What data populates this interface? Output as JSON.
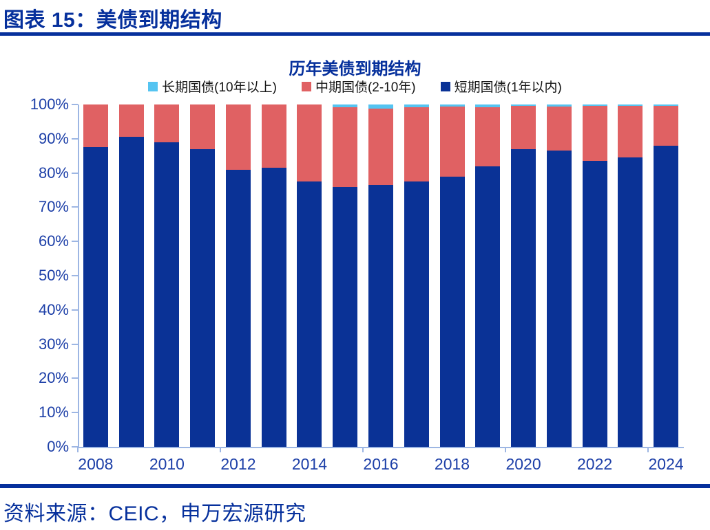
{
  "header": {
    "title": "图表 15：美债到期结构"
  },
  "footer": {
    "source": "资料来源：CEIC，申万宏源研究"
  },
  "colors": {
    "navy_text": "#06309c",
    "axis_label_blue": "#1e40a8",
    "axis_line": "#9db6e3",
    "short_term_bar": "#0a3296",
    "mid_term_bar": "#e06163",
    "long_term_bar": "#55c4f1"
  },
  "chart_data": {
    "type": "bar",
    "stacked": true,
    "stacked_total": 100,
    "title": "历年美债到期结构",
    "categories": [
      2008,
      2009,
      2010,
      2011,
      2012,
      2013,
      2014,
      2015,
      2016,
      2017,
      2018,
      2019,
      2020,
      2021,
      2022,
      2023,
      2024
    ],
    "series": [
      {
        "key": "long-term",
        "name": "长期国债(10年以上)",
        "color": "#55c4f1",
        "values": [
          0,
          0,
          0,
          0,
          0,
          0,
          0,
          0.8,
          1.2,
          0.8,
          0.6,
          0.7,
          0.4,
          0.6,
          0.4,
          0.3,
          0.4
        ]
      },
      {
        "key": "mid-term",
        "name": "中期国债(2-10年)",
        "color": "#e06163",
        "values": [
          12.5,
          9.5,
          11,
          13,
          19,
          18.5,
          22.5,
          23.2,
          22.3,
          21.7,
          20.4,
          17.3,
          12.6,
          12.9,
          16.1,
          15.2,
          11.6
        ]
      },
      {
        "key": "short-term",
        "name": "短期国债(1年以内)",
        "color": "#0a3296",
        "values": [
          87.5,
          90.5,
          89,
          87,
          81,
          81.5,
          77.5,
          76,
          76.5,
          77.5,
          79,
          82,
          87,
          86.5,
          83.5,
          84.5,
          88
        ]
      }
    ],
    "ylim": [
      0,
      100
    ],
    "y_tick_step": 10,
    "y_tick_suffix": "%",
    "x_tick_labels": [
      "2008",
      "2010",
      "2012",
      "2014",
      "2016",
      "2018",
      "2020",
      "2022",
      "2024"
    ],
    "legend_position": "top",
    "grid": false
  }
}
